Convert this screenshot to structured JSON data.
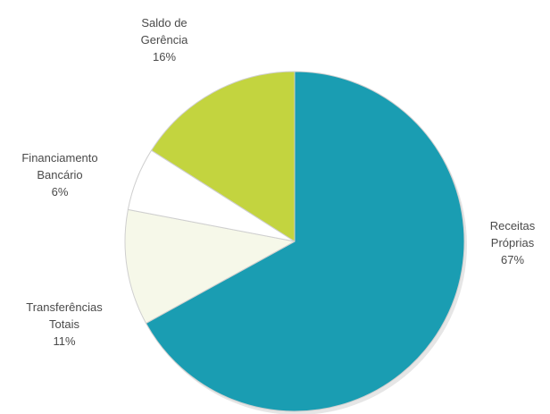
{
  "chart_data": {
    "type": "pie",
    "title": "",
    "start_angle_deg": 0,
    "direction": "clockwise",
    "slices": [
      {
        "label_lines": [
          "Receitas",
          "Próprias"
        ],
        "value_label": "67%",
        "value": 67,
        "color": "#1a9db2",
        "edge_color": "#0f7f92"
      },
      {
        "label_lines": [
          "Transferências",
          "Totais"
        ],
        "value_label": "11%",
        "value": 11,
        "color": "#f6f8e9",
        "edge_color": "#c9cdb2"
      },
      {
        "label_lines": [
          "Financiamento",
          "Bancário"
        ],
        "value_label": "6%",
        "value": 6,
        "color": "#ffffff",
        "edge_color": "#c4c4c4"
      },
      {
        "label_lines": [
          "Saldo de",
          "Gerência"
        ],
        "value_label": "16%",
        "value": 16,
        "color": "#c3d43f",
        "edge_color": "#9fb02a"
      }
    ]
  }
}
